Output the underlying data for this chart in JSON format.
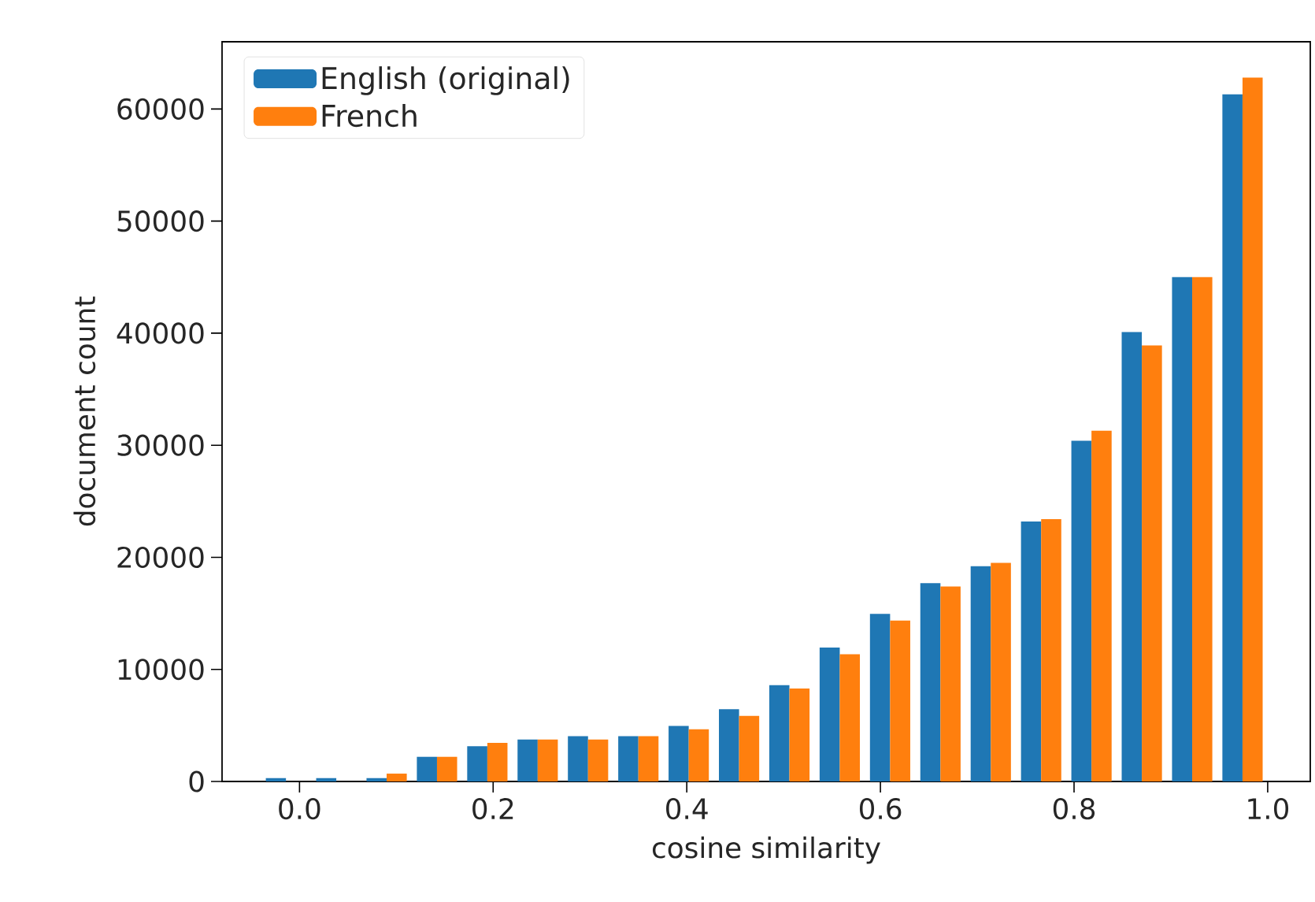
{
  "chart_data": {
    "type": "histogram",
    "xlabel": "cosine similarity",
    "ylabel": "document count",
    "bins": [
      -0.04,
      0.012,
      0.064,
      0.116,
      0.168,
      0.22,
      0.272,
      0.324,
      0.376,
      0.428,
      0.48,
      0.532,
      0.584,
      0.636,
      0.688,
      0.74,
      0.792,
      0.844,
      0.896,
      0.948,
      1.0
    ],
    "series": [
      {
        "name": "English (original)",
        "color": "#1f77b4",
        "values": [
          300,
          300,
          300,
          2200,
          3150,
          3750,
          4050,
          4050,
          4950,
          6450,
          8600,
          11950,
          14950,
          17700,
          19200,
          23200,
          30400,
          40100,
          45000,
          61300
        ]
      },
      {
        "name": "French",
        "color": "#ff7f0e",
        "values": [
          0,
          0,
          700,
          2200,
          3450,
          3750,
          3750,
          4050,
          4650,
          5850,
          8300,
          11350,
          14350,
          17400,
          19500,
          23400,
          31300,
          38900,
          45000,
          62800
        ]
      }
    ],
    "xlim": [
      -0.08,
      1.044
    ],
    "ylim": [
      0,
      66000
    ],
    "xticks": [
      {
        "value": 0.0,
        "label": "0.0"
      },
      {
        "value": 0.2,
        "label": "0.2"
      },
      {
        "value": 0.4,
        "label": "0.4"
      },
      {
        "value": 0.6,
        "label": "0.6"
      },
      {
        "value": 0.8,
        "label": "0.8"
      },
      {
        "value": 1.0,
        "label": "1.0"
      }
    ],
    "yticks": [
      0,
      10000,
      20000,
      30000,
      40000,
      50000,
      60000
    ],
    "grid": false,
    "legend": "top left"
  }
}
